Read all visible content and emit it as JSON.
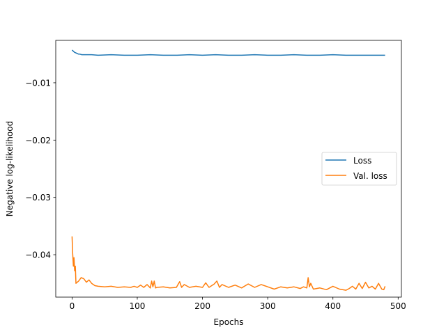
{
  "chart_data": {
    "type": "line",
    "title": "",
    "xlabel": "Epochs",
    "ylabel": "Negative log-likelihood",
    "xlim": [
      -25,
      505
    ],
    "ylim": [
      -0.0474,
      -0.0026
    ],
    "xticks": [
      0,
      100,
      200,
      300,
      400,
      500
    ],
    "xtick_labels": [
      "0",
      "100",
      "200",
      "300",
      "400",
      "500"
    ],
    "yticks": [
      -0.01,
      -0.02,
      -0.03,
      -0.04
    ],
    "ytick_labels": [
      "−0.01",
      "−0.02",
      "−0.03",
      "−0.04"
    ],
    "grid": false,
    "legend_position": "center-right",
    "series": [
      {
        "name": "Loss",
        "color": "#1f77b4",
        "x": [
          0,
          2,
          4,
          6,
          8,
          10,
          12,
          15,
          20,
          30,
          40,
          60,
          80,
          100,
          120,
          140,
          160,
          180,
          200,
          220,
          240,
          260,
          280,
          300,
          320,
          340,
          360,
          380,
          400,
          420,
          440,
          460,
          480
        ],
        "y": [
          -0.0043,
          -0.0045,
          -0.0047,
          -0.0048,
          -0.0049,
          -0.005,
          -0.005,
          -0.0051,
          -0.0051,
          -0.0051,
          -0.0052,
          -0.0051,
          -0.0052,
          -0.0052,
          -0.0051,
          -0.0052,
          -0.0052,
          -0.0051,
          -0.0052,
          -0.0051,
          -0.0052,
          -0.0052,
          -0.0051,
          -0.0052,
          -0.0052,
          -0.0051,
          -0.0052,
          -0.0052,
          -0.0051,
          -0.0052,
          -0.0052,
          -0.0052,
          -0.0052
        ]
      },
      {
        "name": "Val. loss",
        "color": "#ff7f0e",
        "x": [
          0,
          1,
          2,
          3,
          4,
          5,
          6,
          8,
          10,
          14,
          18,
          22,
          26,
          30,
          35,
          40,
          50,
          60,
          70,
          80,
          90,
          95,
          100,
          105,
          110,
          115,
          120,
          122,
          124,
          126,
          128,
          130,
          140,
          150,
          160,
          165,
          168,
          172,
          180,
          190,
          200,
          205,
          210,
          218,
          222,
          226,
          230,
          240,
          250,
          260,
          270,
          280,
          290,
          300,
          310,
          320,
          330,
          340,
          350,
          355,
          360,
          362,
          364,
          366,
          370,
          380,
          390,
          400,
          410,
          420,
          425,
          430,
          435,
          440,
          445,
          450,
          455,
          460,
          465,
          470,
          475,
          478,
          480
        ],
        "y": [
          -0.0368,
          -0.0398,
          -0.042,
          -0.0405,
          -0.0428,
          -0.042,
          -0.045,
          -0.0448,
          -0.0446,
          -0.044,
          -0.0442,
          -0.0448,
          -0.0444,
          -0.045,
          -0.0454,
          -0.0455,
          -0.0456,
          -0.0455,
          -0.0457,
          -0.0456,
          -0.0457,
          -0.0455,
          -0.0457,
          -0.0453,
          -0.0457,
          -0.0452,
          -0.0458,
          -0.0446,
          -0.0456,
          -0.0446,
          -0.0458,
          -0.0457,
          -0.0456,
          -0.0458,
          -0.0457,
          -0.0447,
          -0.0457,
          -0.0452,
          -0.0457,
          -0.0455,
          -0.0457,
          -0.0449,
          -0.0457,
          -0.0451,
          -0.0446,
          -0.0457,
          -0.0452,
          -0.0457,
          -0.0453,
          -0.0458,
          -0.0451,
          -0.0457,
          -0.0452,
          -0.0456,
          -0.046,
          -0.0456,
          -0.0458,
          -0.0456,
          -0.0459,
          -0.0456,
          -0.0458,
          -0.044,
          -0.0456,
          -0.045,
          -0.046,
          -0.0458,
          -0.0461,
          -0.0455,
          -0.046,
          -0.0462,
          -0.0459,
          -0.0455,
          -0.046,
          -0.045,
          -0.0459,
          -0.0448,
          -0.0458,
          -0.0455,
          -0.046,
          -0.045,
          -0.046,
          -0.0461,
          -0.0455
        ]
      }
    ]
  }
}
